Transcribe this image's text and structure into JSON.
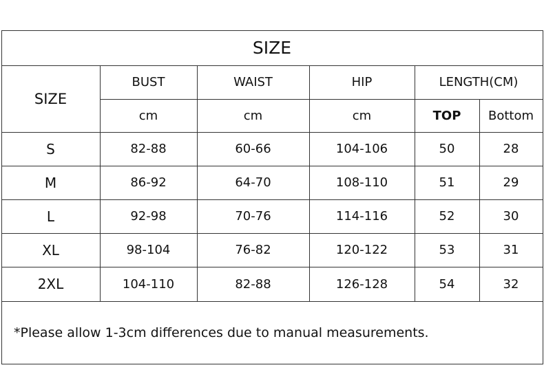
{
  "title": "SIZE",
  "header": {
    "size": "SIZE",
    "columns": [
      "BUST",
      "WAIST",
      "HIP"
    ],
    "length": "LENGTH(CM)",
    "units": [
      "cm",
      "cm",
      "cm"
    ],
    "length_parts": [
      "TOP",
      "Bottom"
    ]
  },
  "table": {
    "rows": [
      [
        "S",
        "82-88",
        "60-66",
        "104-106",
        "50",
        "28"
      ],
      [
        "M",
        "86-92",
        "64-70",
        "108-110",
        "51",
        "29"
      ],
      [
        "L",
        "92-98",
        "70-76",
        "114-116",
        "52",
        "30"
      ],
      [
        "XL",
        "98-104",
        "76-82",
        "120-122",
        "53",
        "31"
      ],
      [
        "2XL",
        "104-110",
        "82-88",
        "126-128",
        "54",
        "32"
      ]
    ]
  },
  "note": "*Please allow 1-3cm differences due to manual measurements."
}
